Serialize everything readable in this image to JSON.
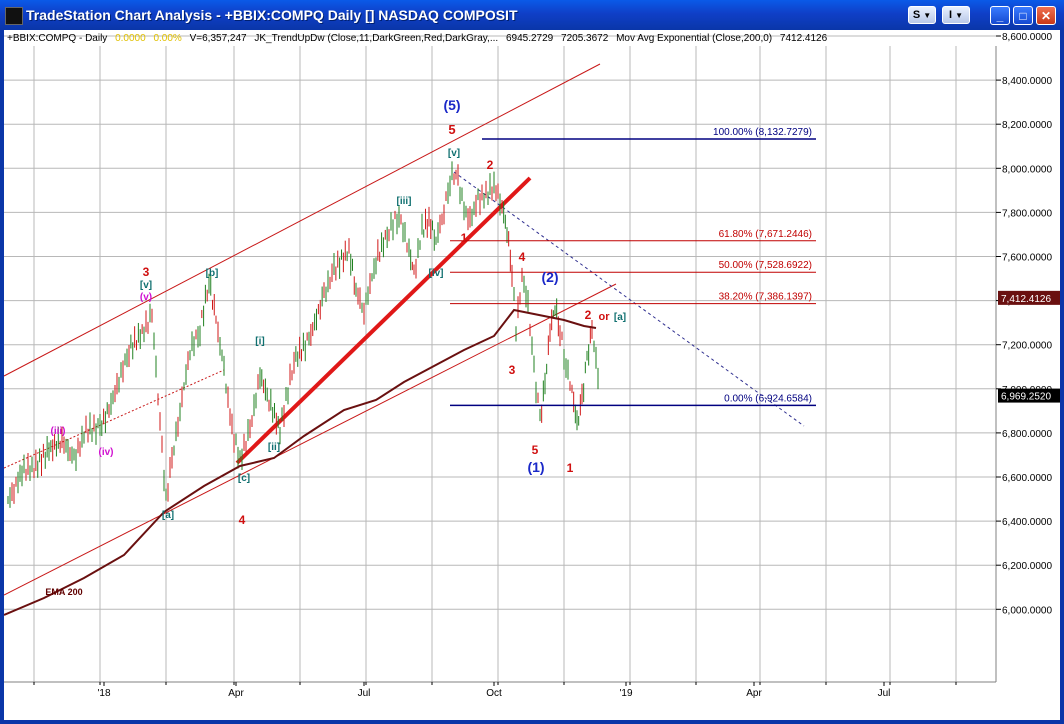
{
  "window": {
    "title": "TradeStation Chart Analysis - +BBIX:COMPQ Daily [] NASDAQ COMPOSIT",
    "buttons": {
      "s": "S",
      "i": "I",
      "minimize": "_",
      "maximize": "□",
      "close": "✕"
    }
  },
  "status": {
    "symbol": "+BBIX:COMPQ - Daily",
    "v1": "0.0000",
    "v2": "0.00%",
    "volume": "V=6,357,247",
    "indicator": "JK_TrendUpDw (Close,11,DarkGreen,Red,DarkGray,...",
    "ind_v1": "6945.2729",
    "ind_v2": "7205.3672",
    "ma": "Mov Avg Exponential (Close,200,0)",
    "ma_value": "7412.4126",
    "colors": {
      "v1": "#e0c000",
      "v2": "#e0c000",
      "default": "#000000"
    }
  },
  "axis": {
    "y_ticks": [
      "8,600.0000",
      "8,400.0000",
      "8,200.0000",
      "8,000.0000",
      "7,800.0000",
      "7,600.0000",
      "7,400.0000",
      "7,200.0000",
      "7,000.0000",
      "6,800.0000",
      "6,600.0000",
      "6,400.0000",
      "6,200.0000",
      "6,000.0000"
    ],
    "y_tick_values": [
      8600,
      8400,
      8200,
      8000,
      7800,
      7600,
      7400,
      7200,
      7000,
      6800,
      6600,
      6400,
      6200,
      6000
    ],
    "x_ticks": [
      "'18",
      "Apr",
      "Jul",
      "Oct",
      "'19",
      "Apr",
      "Jul"
    ],
    "price_marker_ma": "7,412.4126",
    "price_marker_last": "6,969.2520"
  },
  "fibs": [
    {
      "label": "100.00% (8,132.7279)",
      "price": 8132.7279,
      "color": "#000080"
    },
    {
      "label": "61.80% (7,671.2446)",
      "price": 7671.2446,
      "color": "#c00000"
    },
    {
      "label": "50.00% (7,528.6922)",
      "price": 7528.6922,
      "color": "#c00000"
    },
    {
      "label": "38.20% (7,386.1397)",
      "price": 7386.1397,
      "color": "#c00000"
    },
    {
      "label": "0.00% (6,924.6584)",
      "price": 6924.6584,
      "color": "#000080"
    }
  ],
  "wave_labels": [
    {
      "text": "(5)",
      "color": "#1a28c8",
      "size": 14
    },
    {
      "text": "5",
      "color": "#d01010",
      "size": 13
    },
    {
      "text": "[v]",
      "color": "#107070",
      "size": 10
    },
    {
      "text": "2",
      "color": "#d01010",
      "size": 12
    },
    {
      "text": "[iii]",
      "color": "#107070",
      "size": 10
    },
    {
      "text": "1",
      "color": "#d01010",
      "size": 12
    },
    {
      "text": "[iv]",
      "color": "#107070",
      "size": 10
    },
    {
      "text": "4",
      "color": "#d01010",
      "size": 12
    },
    {
      "text": "(2)",
      "color": "#1a28c8",
      "size": 14
    },
    {
      "text": "2",
      "color": "#d01010",
      "size": 12
    },
    {
      "text": "or",
      "color": "#d01010",
      "size": 11
    },
    {
      "text": "[a]",
      "color": "#107070",
      "size": 10
    },
    {
      "text": "3",
      "color": "#d01010",
      "size": 12
    },
    {
      "text": "5",
      "color": "#d01010",
      "size": 12
    },
    {
      "text": "(1)",
      "color": "#1a28c8",
      "size": 14
    },
    {
      "text": "1",
      "color": "#d01010",
      "size": 12
    },
    {
      "text": "3",
      "color": "#d01010",
      "size": 12
    },
    {
      "text": "[v]",
      "color": "#107070",
      "size": 10
    },
    {
      "text": "(v)",
      "color": "#d010d0",
      "size": 10
    },
    {
      "text": "[b]",
      "color": "#107070",
      "size": 10
    },
    {
      "text": "[i]",
      "color": "#107070",
      "size": 10
    },
    {
      "text": "[ii]",
      "color": "#107070",
      "size": 10
    },
    {
      "text": "[c]",
      "color": "#107070",
      "size": 10
    },
    {
      "text": "4",
      "color": "#d01010",
      "size": 12
    },
    {
      "text": "[a]",
      "color": "#107070",
      "size": 10
    },
    {
      "text": "(iii)",
      "color": "#d010d0",
      "size": 10
    },
    {
      "text": "(iv)",
      "color": "#d010d0",
      "size": 10
    },
    {
      "text": "EMA 200",
      "color": "#600000",
      "size": 9
    }
  ]
}
